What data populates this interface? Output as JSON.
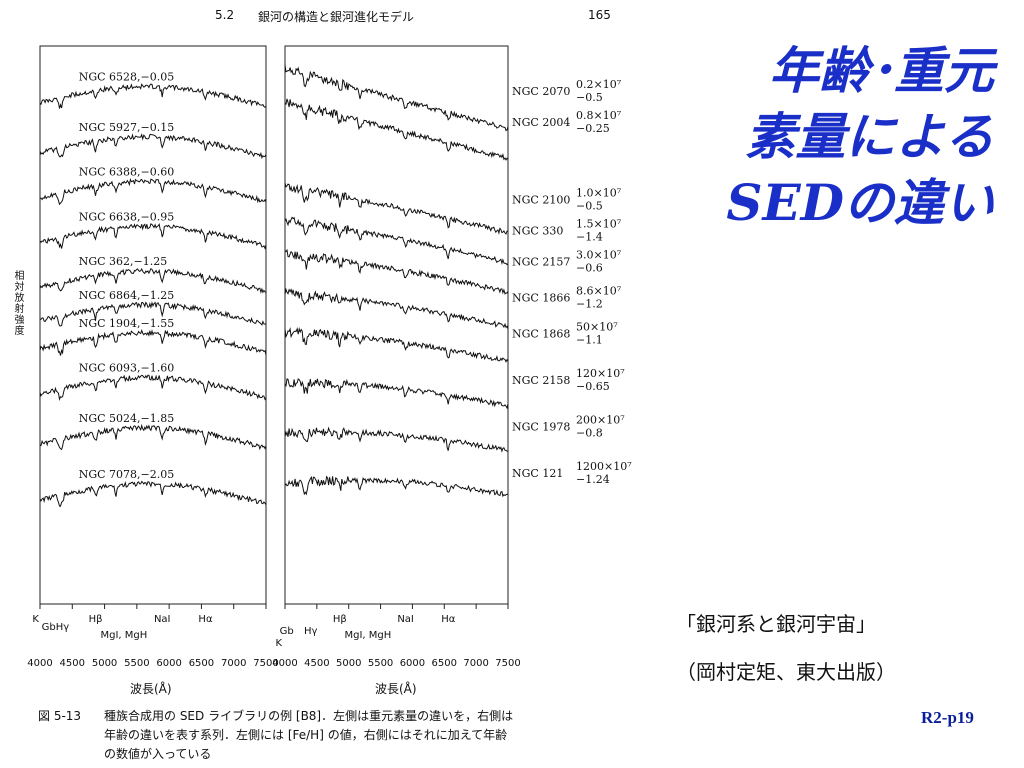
{
  "header": {
    "section": "5.2",
    "title": "銀河の構造と銀河進化モデル",
    "page": "165"
  },
  "slide": {
    "title_lines": [
      "年齢･重元",
      "素量による",
      "SEDの違い"
    ],
    "reference_line1": "「銀河系と銀河宇宙」",
    "reference_line2": "（岡村定矩、東大出版）",
    "slide_number": "R2-p19",
    "title_color": "#1a2ec8"
  },
  "figure": {
    "y_axis_label": "相対放射強度",
    "x_axis_label_left": "波長(Å)",
    "x_axis_label_right": "波長(Å)",
    "caption_label": "図 5-13",
    "caption_lines": [
      "種族合成用の SED ライブラリの例 [B8]．左側は重元素量の違いを，右側は",
      "年齢の違いを表す系列．左側には [Fe/H] の値，右側にはそれに加えて年齢",
      "の数値が入っている"
    ],
    "line_markers_left": [
      "K",
      "GbHγ",
      "Hβ",
      "NaI",
      "Hα",
      "MgI, MgH"
    ],
    "line_markers_right": [
      "Gb",
      "K",
      "Hγ",
      "Hβ",
      "NaI",
      "Hα",
      "MgI, MgH"
    ]
  },
  "chart_data": [
    {
      "type": "line",
      "panel": "left",
      "xlabel": "波長(Å)",
      "ylabel": "相対放射強度",
      "xlim": [
        4000,
        7500
      ],
      "x_ticks": [
        "4000",
        "4500",
        "5000",
        "5500",
        "6000",
        "6500",
        "7000",
        "7500"
      ],
      "series": [
        {
          "name": "NGC 6528, −0.05",
          "label": "NGC 6528,−0.05",
          "offset": 8.6
        },
        {
          "name": "NGC 5927, −0.15",
          "label": "NGC 5927,−0.15",
          "offset": 7.7
        },
        {
          "name": "NGC 6388, −0.60",
          "label": "NGC 6388,−0.60",
          "offset": 6.9
        },
        {
          "name": "NGC 6638, −0.95",
          "label": "NGC 6638,−0.95",
          "offset": 6.1
        },
        {
          "name": "NGC 362, −1.25",
          "label": "NGC 362,−1.25",
          "offset": 5.3
        },
        {
          "name": "NGC 6864, −1.25",
          "label": "NGC 6864,−1.25",
          "offset": 4.7
        },
        {
          "name": "NGC 1904, −1.55",
          "label": "NGC 1904,−1.55",
          "offset": 4.2
        },
        {
          "name": "NGC 6093, −1.60",
          "label": "NGC 6093,−1.60",
          "offset": 3.4
        },
        {
          "name": "NGC 5024, −1.85",
          "label": "NGC 5024,−1.85",
          "offset": 2.5
        },
        {
          "name": "NGC 7078, −2.05",
          "label": "NGC 7078,−2.05",
          "offset": 1.5
        }
      ]
    },
    {
      "type": "line",
      "panel": "right",
      "xlabel": "波長(Å)",
      "xlim": [
        4000,
        7500
      ],
      "x_ticks": [
        "4000",
        "4500",
        "5000",
        "5500",
        "6000",
        "6500",
        "7000",
        "7500"
      ],
      "series": [
        {
          "name": "NGC 2070",
          "age": "0.2×10⁷",
          "feh": "−0.5",
          "offset": 9.2
        },
        {
          "name": "NGC 2004",
          "age": "0.8×10⁷",
          "feh": "−0.25",
          "offset": 8.6
        },
        {
          "name": "NGC 2100",
          "age": "1.0×10⁷",
          "feh": "−0.5",
          "offset": 7.1
        },
        {
          "name": "NGC 330",
          "age": "1.5×10⁷",
          "feh": "−1.4",
          "offset": 6.5
        },
        {
          "name": "NGC 2157",
          "age": "3.0×10⁷",
          "feh": "−0.6",
          "offset": 5.9
        },
        {
          "name": "NGC 1866",
          "age": "8.6×10⁷",
          "feh": "−1.2",
          "offset": 5.2
        },
        {
          "name": "NGC 1868",
          "age": "50×10⁷",
          "feh": "−1.1",
          "offset": 4.5
        },
        {
          "name": "NGC 2158",
          "age": "120×10⁷",
          "feh": "−0.65",
          "offset": 3.6
        },
        {
          "name": "NGC 1978",
          "age": "200×10⁷",
          "feh": "−0.8",
          "offset": 2.7
        },
        {
          "name": "NGC 121",
          "age": "1200×10⁷",
          "feh": "−1.24",
          "offset": 1.8
        }
      ]
    }
  ]
}
